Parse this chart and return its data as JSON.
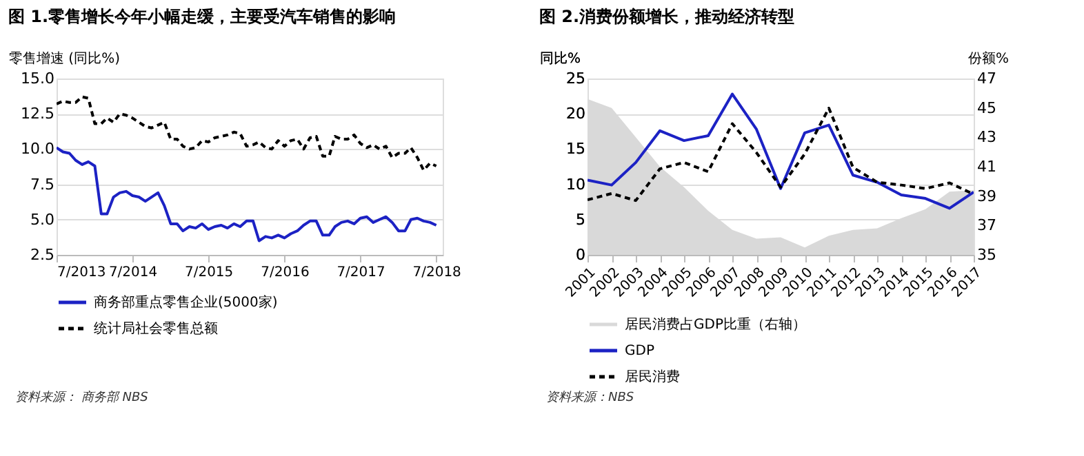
{
  "chart_data": [
    {
      "type": "line",
      "title": "图 1.零售增长今年小幅走缓，主要受汽车销售的影响",
      "ylabel": "零售增速 (同比%)",
      "x": [
        "2013-07",
        "2013-08",
        "2013-09",
        "2013-10",
        "2013-11",
        "2013-12",
        "2014-01",
        "2014-02",
        "2014-03",
        "2014-04",
        "2014-05",
        "2014-06",
        "2014-07",
        "2014-08",
        "2014-09",
        "2014-10",
        "2014-11",
        "2014-12",
        "2015-01",
        "2015-02",
        "2015-03",
        "2015-04",
        "2015-05",
        "2015-06",
        "2015-07",
        "2015-08",
        "2015-09",
        "2015-10",
        "2015-11",
        "2015-12",
        "2016-01",
        "2016-02",
        "2016-03",
        "2016-04",
        "2016-05",
        "2016-06",
        "2016-07",
        "2016-08",
        "2016-09",
        "2016-10",
        "2016-11",
        "2016-12",
        "2017-01",
        "2017-02",
        "2017-03",
        "2017-04",
        "2017-05",
        "2017-06",
        "2017-07",
        "2017-08",
        "2017-09",
        "2017-10",
        "2017-11",
        "2017-12",
        "2018-01",
        "2018-02",
        "2018-03",
        "2018-04",
        "2018-05",
        "2018-06",
        "2018-07"
      ],
      "series": [
        {
          "name": "商务部重点零售企业(5000家)",
          "color": "#1c22c4",
          "line_style": "solid",
          "values": [
            10.1,
            9.8,
            9.7,
            9.2,
            8.9,
            9.1,
            8.8,
            5.4,
            5.4,
            6.6,
            6.9,
            7.0,
            6.7,
            6.6,
            6.3,
            6.6,
            6.9,
            6.0,
            4.7,
            4.7,
            4.2,
            4.5,
            4.4,
            4.7,
            4.3,
            4.5,
            4.6,
            4.4,
            4.7,
            4.5,
            4.9,
            4.9,
            3.5,
            3.8,
            3.7,
            3.9,
            3.7,
            4.0,
            4.2,
            4.6,
            4.9,
            4.9,
            3.9,
            3.9,
            4.5,
            4.8,
            4.9,
            4.7,
            5.1,
            5.2,
            4.8,
            5.0,
            5.2,
            4.8,
            4.2,
            4.2,
            5.0,
            5.1,
            4.9,
            4.8,
            4.6
          ]
        },
        {
          "name": "统计局社会零售总额",
          "color": "#000000",
          "line_style": "dashed",
          "values": [
            13.2,
            13.4,
            13.3,
            13.3,
            13.7,
            13.6,
            11.8,
            11.8,
            12.2,
            11.9,
            12.5,
            12.4,
            12.2,
            11.9,
            11.6,
            11.5,
            11.7,
            11.9,
            10.7,
            10.7,
            10.2,
            10.0,
            10.1,
            10.6,
            10.5,
            10.8,
            10.9,
            11.0,
            11.2,
            11.1,
            10.2,
            10.3,
            10.5,
            10.1,
            10.0,
            10.6,
            10.2,
            10.6,
            10.7,
            10.0,
            10.8,
            10.9,
            9.5,
            9.5,
            10.9,
            10.7,
            10.7,
            11.0,
            10.4,
            10.1,
            10.3,
            10.0,
            10.2,
            9.4,
            9.7,
            9.7,
            10.1,
            9.4,
            8.5,
            9.0,
            8.8
          ]
        }
      ],
      "xlim": [
        "2013-07",
        "2018-08"
      ],
      "xticks": [
        {
          "value": "2013-07",
          "label": "7/2013"
        },
        {
          "value": "2014-07",
          "label": "7/2014"
        },
        {
          "value": "2015-07",
          "label": "7/2015"
        },
        {
          "value": "2016-07",
          "label": "7/2016"
        },
        {
          "value": "2017-07",
          "label": "7/2017"
        },
        {
          "value": "2018-07",
          "label": "7/2018"
        }
      ],
      "ylim": [
        2.5,
        15
      ],
      "yticks": [
        2.5,
        {
          "value": 5,
          "label": "5.0"
        },
        7.5,
        {
          "value": 10,
          "label": "10.0"
        },
        12.5,
        {
          "value": 15,
          "label": "15.0"
        }
      ],
      "grid": "y",
      "legend": "bottom",
      "annotations": [
        "资料来源： 商务部 NBS"
      ]
    },
    {
      "type": "line",
      "title": "图 2.消费份额增长，推动经济转型",
      "ylabel": "同比%",
      "y2label": "份额%",
      "categories": [
        "2001",
        "2002",
        "2003",
        "2004",
        "2005",
        "2006",
        "2007",
        "2008",
        "2009",
        "2010",
        "2011",
        "2012",
        "2013",
        "2014",
        "2015",
        "2016",
        "2017"
      ],
      "series": [
        {
          "name": "居民消费占GDP比重（右轴）",
          "type": "area",
          "axis": "y2",
          "color": "#d9d9d9",
          "values": [
            45.6,
            45.0,
            43.0,
            41.0,
            39.6,
            38.0,
            36.7,
            36.1,
            36.2,
            35.5,
            36.3,
            36.7,
            36.8,
            37.5,
            38.1,
            39.3,
            39.4
          ]
        },
        {
          "name": "GDP",
          "color": "#1c22c4",
          "line_style": "solid",
          "values": [
            10.6,
            9.9,
            13.1,
            17.6,
            16.2,
            16.9,
            22.8,
            17.8,
            9.4,
            17.3,
            18.4,
            11.3,
            10.3,
            8.5,
            8.0,
            6.6,
            8.9
          ]
        },
        {
          "name": "居民消费",
          "color": "#000000",
          "line_style": "dashed",
          "values": [
            7.8,
            8.7,
            7.7,
            12.2,
            13.1,
            11.8,
            18.6,
            14.5,
            9.6,
            14.3,
            20.8,
            12.4,
            10.3,
            9.9,
            9.4,
            10.2,
            8.6
          ]
        }
      ],
      "ylim": [
        0,
        25
      ],
      "yticks": [
        0,
        5,
        10,
        15,
        20,
        25
      ],
      "y2lim": [
        35,
        47
      ],
      "y2ticks": [
        35,
        37,
        39,
        41,
        43,
        45,
        47
      ],
      "grid": "y",
      "legend": "bottom",
      "annotations": [
        "资料来源：NBS"
      ]
    }
  ]
}
